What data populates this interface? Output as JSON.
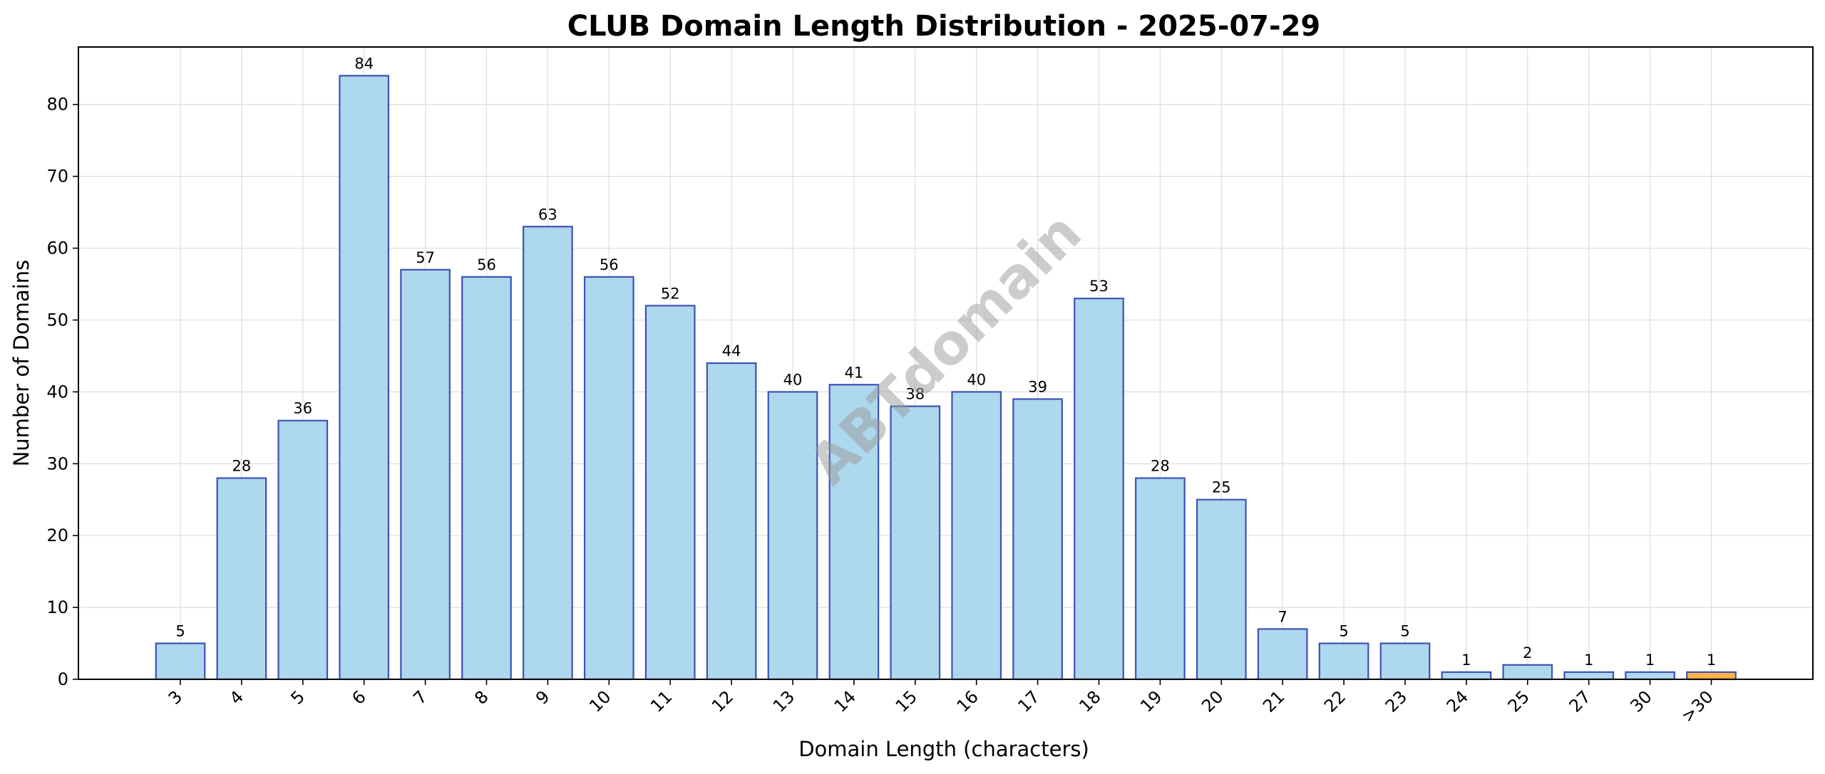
{
  "chart_data": {
    "type": "bar",
    "title": "CLUB Domain Length Distribution - 2025-07-29",
    "xlabel": "Domain Length (characters)",
    "ylabel": "Number of Domains",
    "categories": [
      "3",
      "4",
      "5",
      "6",
      "7",
      "8",
      "9",
      "10",
      "11",
      "12",
      "13",
      "14",
      "15",
      "16",
      "17",
      "18",
      "19",
      "20",
      "21",
      "22",
      "23",
      "24",
      "25",
      "27",
      "30",
      ">30"
    ],
    "values": [
      5,
      28,
      36,
      84,
      57,
      56,
      63,
      56,
      52,
      44,
      40,
      41,
      38,
      40,
      39,
      53,
      28,
      25,
      7,
      5,
      5,
      1,
      2,
      1,
      1,
      1
    ],
    "highlight_category": ">30",
    "ylim": [
      0,
      88
    ],
    "yticks": [
      0,
      10,
      20,
      30,
      40,
      50,
      60,
      70,
      80
    ],
    "grid": true,
    "legend": "none",
    "colors": {
      "bar_fill": "#add8ee",
      "bar_edge": "#3f51b5",
      "highlight_fill": "#ffb347",
      "grid": "#dddddd"
    },
    "watermark": "ABTdomain"
  }
}
